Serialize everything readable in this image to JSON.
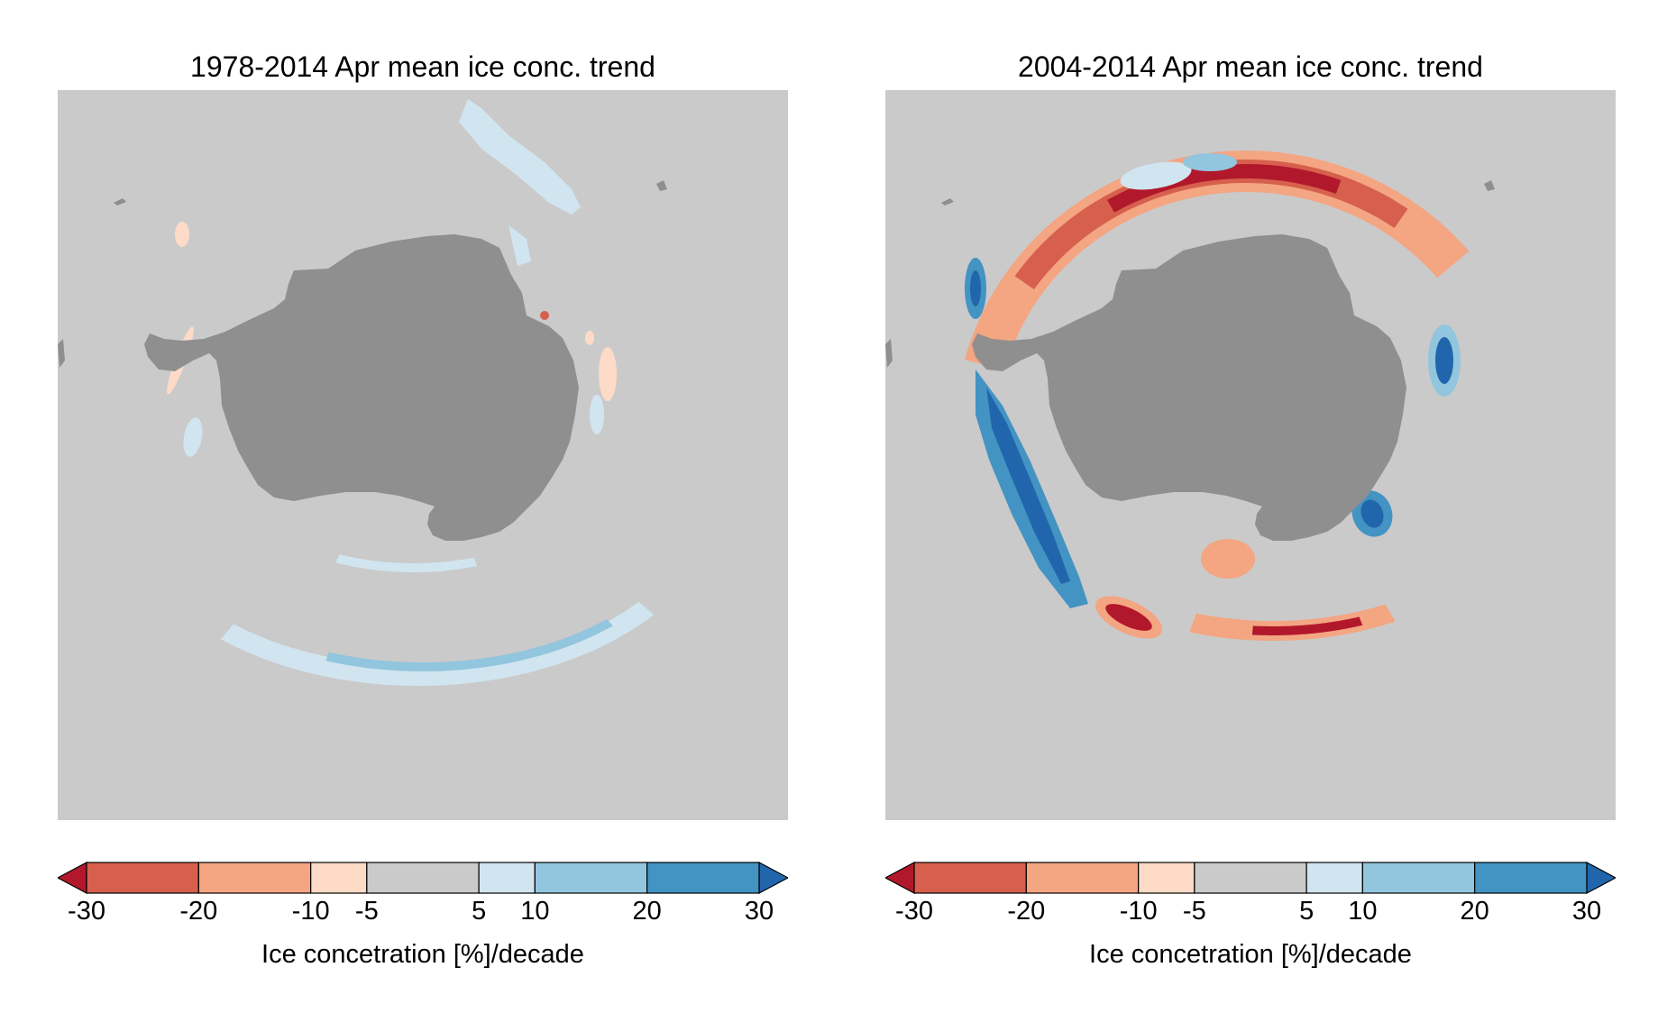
{
  "figure": {
    "panels": [
      {
        "title": "1978-2014 Apr mean ice conc. trend",
        "variant": "long_term"
      },
      {
        "title": "2004-2014 Apr mean ice conc. trend",
        "variant": "recent"
      }
    ],
    "colorbar": {
      "label": "Ice concetration [%]/decade",
      "ticks": [
        "-30",
        "-20",
        "-10",
        "-5",
        "5",
        "10",
        "20",
        "30"
      ],
      "bins": [
        {
          "from": -30,
          "to": -20,
          "color": "#d6604d"
        },
        {
          "from": -20,
          "to": -10,
          "color": "#f4a582"
        },
        {
          "from": -10,
          "to": -5,
          "color": "#fddbc7"
        },
        {
          "from": -5,
          "to": 5,
          "color": "#cacaca"
        },
        {
          "from": 5,
          "to": 10,
          "color": "#d1e5f0"
        },
        {
          "from": 10,
          "to": 20,
          "color": "#92c5de"
        },
        {
          "from": 20,
          "to": 30,
          "color": "#4393c3"
        }
      ],
      "under_color": "#b2182b",
      "over_color": "#2166ac",
      "extend": "both"
    },
    "colors": {
      "background_ocean": "#cacaca",
      "land": "#8f8f8f",
      "strong_negative": "#b2182b",
      "strong_positive": "#2166ac"
    }
  }
}
